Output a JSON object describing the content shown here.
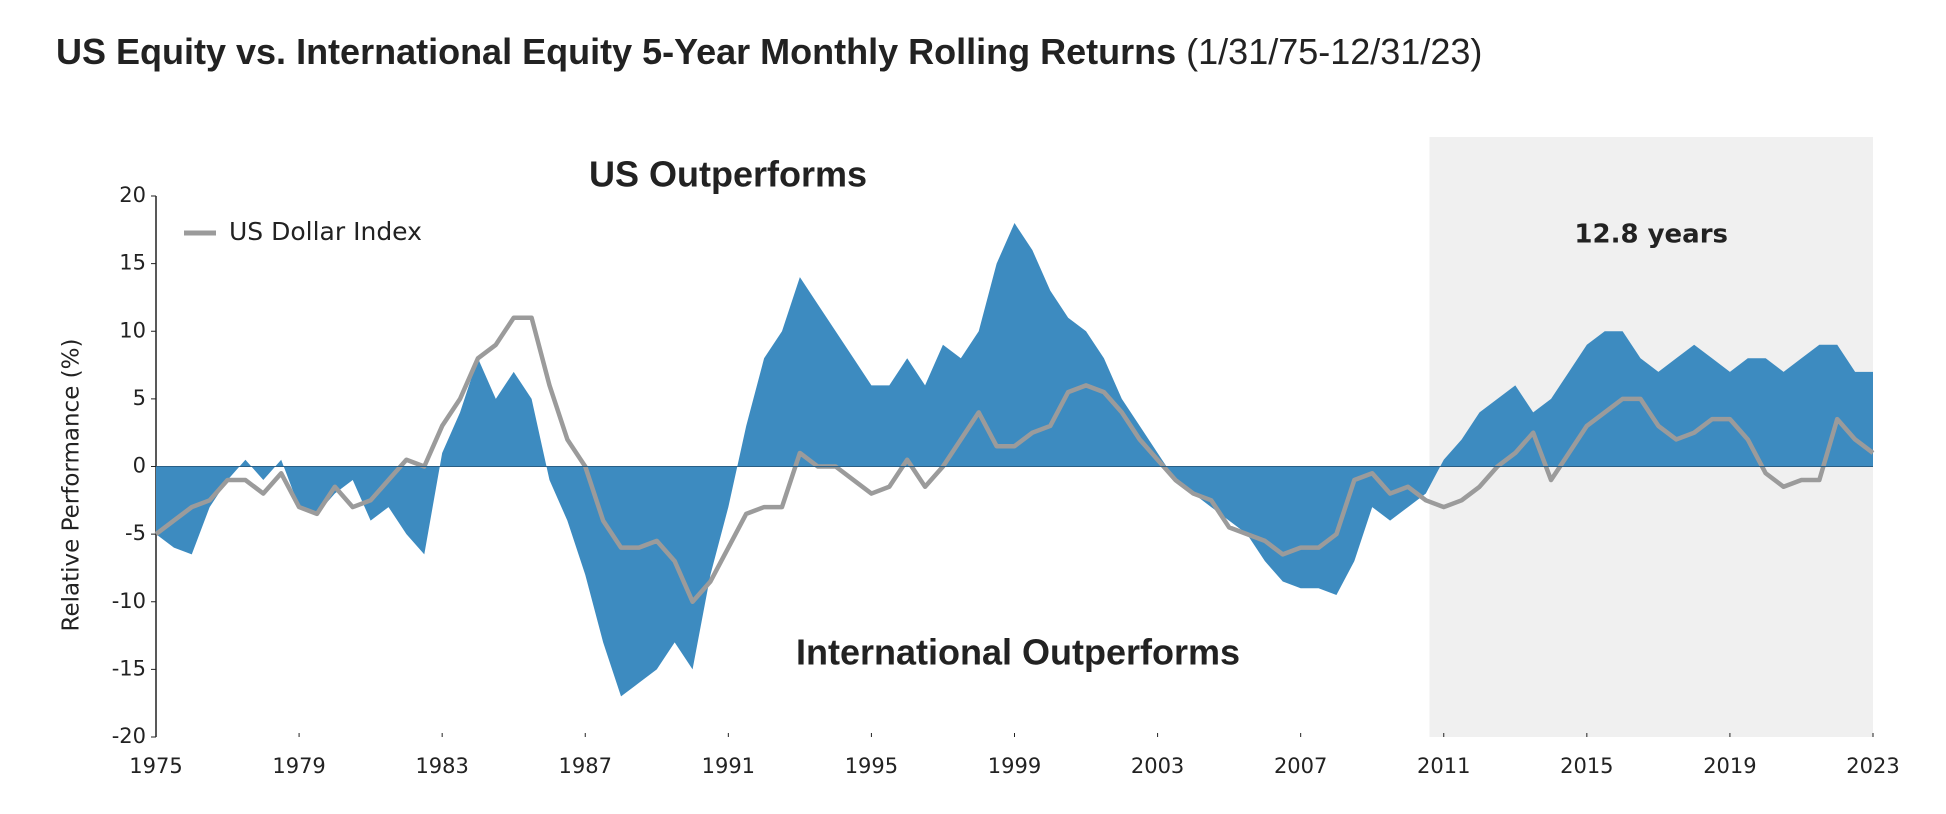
{
  "chart_data": {
    "type": "area",
    "title": "US Equity vs. International Equity 5-Year Monthly Rolling Returns",
    "title_note": "(1/31/75-12/31/23)",
    "y_label": "Relative Performance (%)",
    "annotations": [
      "US Outperforms",
      "International Outperforms"
    ],
    "highlight": {
      "range": [
        2010.6,
        2023
      ],
      "label": "12.8 years",
      "color": "#f0f0f0"
    },
    "xlim": [
      1975,
      2023
    ],
    "xticks": [
      1975,
      1979,
      1983,
      1987,
      1991,
      1995,
      1999,
      2003,
      2007,
      2011,
      2015,
      2019,
      2023
    ],
    "ylim": [
      -20,
      20
    ],
    "yticks": [
      -20,
      -15,
      -10,
      -5,
      0,
      5,
      10,
      15,
      20
    ],
    "x": [
      1975,
      1975.5,
      1976,
      1976.5,
      1977,
      1977.5,
      1978,
      1978.5,
      1979,
      1979.5,
      1980,
      1980.5,
      1981,
      1981.5,
      1982,
      1982.5,
      1983,
      1983.5,
      1984,
      1984.5,
      1985,
      1985.5,
      1986,
      1986.5,
      1987,
      1987.5,
      1988,
      1988.5,
      1989,
      1989.5,
      1990,
      1990.5,
      1991,
      1991.5,
      1992,
      1992.5,
      1993,
      1993.5,
      1994,
      1994.5,
      1995,
      1995.5,
      1996,
      1996.5,
      1997,
      1997.5,
      1998,
      1998.5,
      1999,
      1999.5,
      2000,
      2000.5,
      2001,
      2001.5,
      2002,
      2002.5,
      2003,
      2003.5,
      2004,
      2004.5,
      2005,
      2005.5,
      2006,
      2006.5,
      2007,
      2007.5,
      2008,
      2008.5,
      2009,
      2009.5,
      2010,
      2010.5,
      2011,
      2011.5,
      2012,
      2012.5,
      2013,
      2013.5,
      2014,
      2014.5,
      2015,
      2015.5,
      2016,
      2016.5,
      2017,
      2017.5,
      2018,
      2018.5,
      2019,
      2019.5,
      2020,
      2020.5,
      2021,
      2021.5,
      2022,
      2022.5,
      2023
    ],
    "legend": "upper left",
    "series": [
      {
        "type": "area",
        "color": "#3d8bc0",
        "values": [
          -5,
          -6,
          -6.5,
          -3,
          -1,
          0.5,
          -1,
          0.5,
          -3,
          -3.5,
          -2,
          -1,
          -4,
          -3,
          -5,
          -6.5,
          1,
          4,
          8,
          5,
          7,
          5,
          -1,
          -4,
          -8,
          -13,
          -17,
          -16,
          -15,
          -13,
          -15,
          -8,
          -3,
          3,
          8,
          10,
          14,
          12,
          10,
          8,
          6,
          6,
          8,
          6,
          9,
          8,
          10,
          15,
          18,
          16,
          13,
          11,
          10,
          8,
          5,
          3,
          1,
          -1,
          -2,
          -3,
          -4,
          -5,
          -7,
          -8.5,
          -9,
          -9,
          -9.5,
          -7,
          -3,
          -4,
          -3,
          -2,
          0.5,
          2,
          4,
          5,
          6,
          4,
          5,
          7,
          9,
          10,
          10,
          8,
          7,
          8,
          9,
          8,
          7,
          8,
          8,
          7,
          8,
          9,
          9,
          7,
          7
        ]
      },
      {
        "type": "line",
        "name": "US Dollar Index",
        "color": "#9b9b9b",
        "values": [
          -5,
          -4,
          -3,
          -2.5,
          -1,
          -1,
          -2,
          -0.5,
          -3,
          -3.5,
          -1.5,
          -3,
          -2.5,
          -1,
          0.5,
          0,
          3,
          5,
          8,
          9,
          11,
          11,
          6,
          2,
          0,
          -4,
          -6,
          -6,
          -5.5,
          -7,
          -10,
          -8.5,
          -6,
          -3.5,
          -3,
          -3,
          1,
          0,
          0,
          -1,
          -2,
          -1.5,
          0.5,
          -1.5,
          0,
          2,
          4,
          1.5,
          1.5,
          2.5,
          3,
          5.5,
          6,
          5.5,
          4,
          2,
          0.5,
          -1,
          -2,
          -2.5,
          -4.5,
          -5,
          -5.5,
          -6.5,
          -6,
          -6,
          -5,
          -1,
          -0.5,
          -2,
          -1.5,
          -2.5,
          -3,
          -2.5,
          -1.5,
          0,
          1,
          2.5,
          -1,
          1,
          3,
          4,
          5,
          5,
          3,
          2,
          2.5,
          3.5,
          3.5,
          2,
          -0.5,
          -1.5,
          -1,
          -1,
          3.5,
          2,
          1
        ]
      }
    ]
  }
}
